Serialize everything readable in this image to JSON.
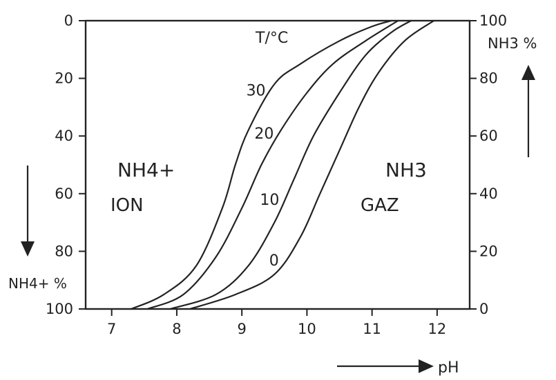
{
  "chart_data": {
    "type": "line",
    "xlabel": "pH",
    "ylabel_left": "NH4+ %",
    "ylabel_right": "NH3 %",
    "legend_title": "T/°C",
    "xlim": [
      6.6,
      12.5
    ],
    "ylim": [
      0,
      100
    ],
    "x_ticks": [
      7,
      8,
      9,
      10,
      11,
      12
    ],
    "left_ticks": [
      0,
      20,
      40,
      60,
      80,
      100
    ],
    "left_ticks_note": "left axis reads NH4+ % downward (0 at top, 100 at bottom)",
    "right_ticks": [
      0,
      20,
      40,
      60,
      80,
      100
    ],
    "annotations": {
      "left_region": [
        "NH4+",
        "ION"
      ],
      "right_region": [
        "NH3",
        "GAZ"
      ]
    },
    "series": [
      {
        "name": "30",
        "points": [
          [
            7.3,
            0
          ],
          [
            7.8,
            5
          ],
          [
            8.3,
            15
          ],
          [
            8.7,
            35
          ],
          [
            8.9,
            50
          ],
          [
            9.1,
            62
          ],
          [
            9.5,
            78
          ],
          [
            9.9,
            85
          ],
          [
            10.5,
            93
          ],
          [
            11.0,
            98
          ],
          [
            11.3,
            100
          ]
        ]
      },
      {
        "name": "20",
        "points": [
          [
            7.55,
            0
          ],
          [
            8.1,
            5
          ],
          [
            8.6,
            18
          ],
          [
            9.0,
            35
          ],
          [
            9.3,
            50
          ],
          [
            9.6,
            62
          ],
          [
            10.0,
            75
          ],
          [
            10.4,
            85
          ],
          [
            10.9,
            93
          ],
          [
            11.4,
            100
          ]
        ]
      },
      {
        "name": "10",
        "points": [
          [
            7.9,
            0
          ],
          [
            8.6,
            5
          ],
          [
            9.1,
            15
          ],
          [
            9.5,
            30
          ],
          [
            9.8,
            45
          ],
          [
            10.1,
            60
          ],
          [
            10.5,
            75
          ],
          [
            10.9,
            88
          ],
          [
            11.3,
            96
          ],
          [
            11.6,
            100
          ]
        ]
      },
      {
        "name": "0",
        "points": [
          [
            8.2,
            0
          ],
          [
            8.9,
            5
          ],
          [
            9.5,
            12
          ],
          [
            9.9,
            25
          ],
          [
            10.2,
            40
          ],
          [
            10.5,
            55
          ],
          [
            10.8,
            70
          ],
          [
            11.1,
            82
          ],
          [
            11.5,
            93
          ],
          [
            11.95,
            100
          ]
        ]
      }
    ]
  }
}
